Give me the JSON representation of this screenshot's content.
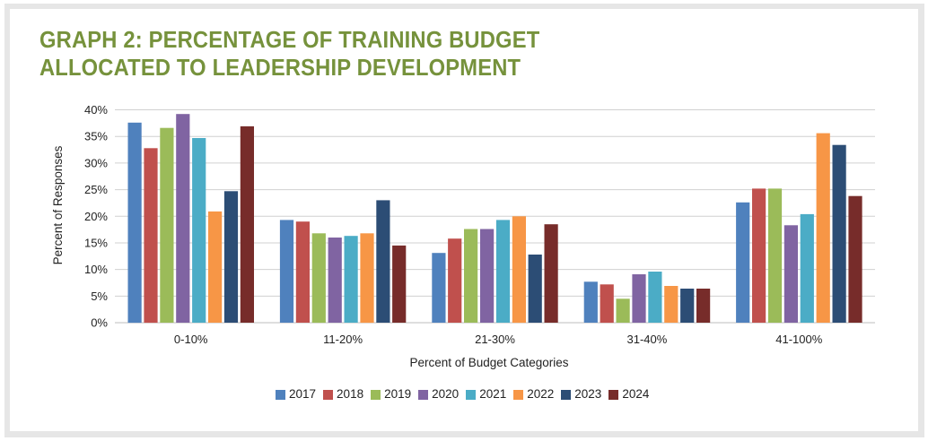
{
  "title": {
    "line1": "GRAPH 2: PERCENTAGE OF TRAINING BUDGET",
    "line2": "ALLOCATED TO LEADERSHIP DEVELOPMENT"
  },
  "chart_data": {
    "type": "bar",
    "title": "GRAPH 2: PERCENTAGE OF TRAINING BUDGET ALLOCATED TO LEADERSHIP DEVELOPMENT",
    "xlabel": "Percent of Budget Categories",
    "ylabel": "Percent of Responses",
    "categories": [
      "0-10%",
      "11-20%",
      "21-30%",
      "31-40%",
      "41-100%"
    ],
    "ylim": [
      0,
      40
    ],
    "yticks": [
      0,
      5,
      10,
      15,
      20,
      25,
      30,
      35,
      40
    ],
    "ytick_labels": [
      "0%",
      "5%",
      "10%",
      "15%",
      "20%",
      "25%",
      "30%",
      "35%",
      "40%"
    ],
    "grid": true,
    "legend_position": "bottom",
    "series": [
      {
        "name": "2017",
        "color": "#4f81bd",
        "values": [
          37.6,
          19.3,
          13.1,
          7.7,
          22.6
        ]
      },
      {
        "name": "2018",
        "color": "#c0504d",
        "values": [
          32.8,
          19.0,
          15.8,
          7.2,
          25.2
        ]
      },
      {
        "name": "2019",
        "color": "#9bbb59",
        "values": [
          36.6,
          16.8,
          17.6,
          4.5,
          25.2
        ]
      },
      {
        "name": "2020",
        "color": "#8064a2",
        "values": [
          39.2,
          16.0,
          17.6,
          9.1,
          18.3
        ]
      },
      {
        "name": "2021",
        "color": "#4bacc6",
        "values": [
          34.7,
          16.3,
          19.3,
          9.6,
          20.4
        ]
      },
      {
        "name": "2022",
        "color": "#f79646",
        "values": [
          20.9,
          16.8,
          20.0,
          6.9,
          35.6
        ]
      },
      {
        "name": "2023",
        "color": "#2c4d75",
        "values": [
          24.7,
          23.0,
          12.8,
          6.4,
          33.4
        ]
      },
      {
        "name": "2024",
        "color": "#772c2a",
        "values": [
          36.9,
          14.5,
          18.5,
          6.4,
          23.8
        ]
      }
    ]
  },
  "colors": {
    "title": "#76923c",
    "gridline": "#d0d0d0",
    "frame": "#e6e6e6"
  }
}
